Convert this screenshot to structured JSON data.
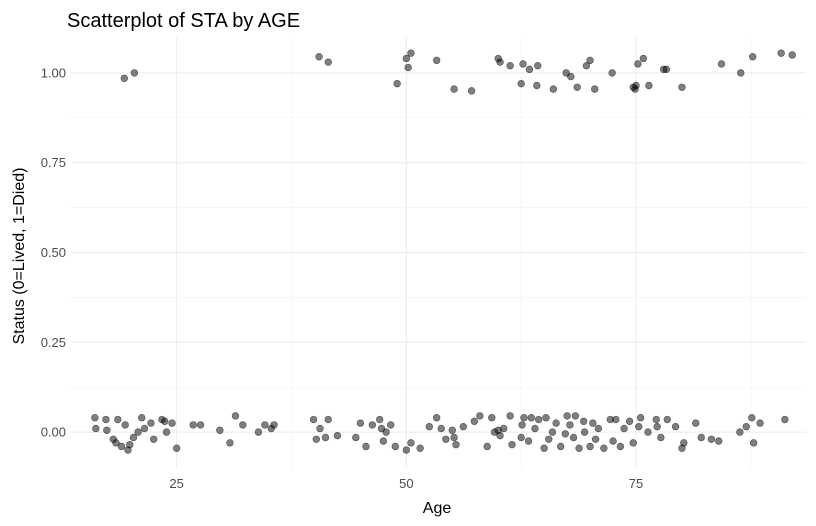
{
  "chart_data": {
    "type": "scatter",
    "title": "Scatterplot of STA by AGE",
    "xlabel": "Age",
    "ylabel": "Status (0=Lived, 1=Died)",
    "xlim": [
      13.5,
      93.5
    ],
    "ylim": [
      -0.1,
      1.1
    ],
    "x_ticks": [
      25,
      50,
      75
    ],
    "x_tick_labels": [
      "25",
      "50",
      "75"
    ],
    "y_ticks": [
      0,
      0.25,
      0.5,
      0.75,
      1
    ],
    "y_tick_labels": [
      "0.00",
      "0.25",
      "0.50",
      "0.75",
      "1.00"
    ],
    "grid": true,
    "point_color": "#000000",
    "point_alpha": 0.5,
    "jitter": true,
    "points": [
      {
        "x": 19.3,
        "y": 0.985
      },
      {
        "x": 20.4,
        "y": 1.0
      },
      {
        "x": 40.5,
        "y": 1.045
      },
      {
        "x": 41.5,
        "y": 1.03
      },
      {
        "x": 49.0,
        "y": 0.97
      },
      {
        "x": 50.0,
        "y": 1.04
      },
      {
        "x": 50.5,
        "y": 1.055
      },
      {
        "x": 50.2,
        "y": 1.015
      },
      {
        "x": 53.3,
        "y": 1.035
      },
      {
        "x": 55.2,
        "y": 0.955
      },
      {
        "x": 57.1,
        "y": 0.95
      },
      {
        "x": 60.0,
        "y": 1.04
      },
      {
        "x": 60.2,
        "y": 1.03
      },
      {
        "x": 61.3,
        "y": 1.02
      },
      {
        "x": 62.5,
        "y": 0.97
      },
      {
        "x": 62.7,
        "y": 1.025
      },
      {
        "x": 63.4,
        "y": 1.01
      },
      {
        "x": 64.3,
        "y": 1.02
      },
      {
        "x": 64.2,
        "y": 0.965
      },
      {
        "x": 66.0,
        "y": 0.955
      },
      {
        "x": 67.4,
        "y": 1.0
      },
      {
        "x": 67.9,
        "y": 0.99
      },
      {
        "x": 68.6,
        "y": 0.96
      },
      {
        "x": 69.6,
        "y": 1.02
      },
      {
        "x": 70.0,
        "y": 1.035
      },
      {
        "x": 70.5,
        "y": 0.955
      },
      {
        "x": 72.4,
        "y": 1.0
      },
      {
        "x": 74.7,
        "y": 0.96
      },
      {
        "x": 74.9,
        "y": 0.955
      },
      {
        "x": 75.0,
        "y": 0.965
      },
      {
        "x": 75.2,
        "y": 1.025
      },
      {
        "x": 75.8,
        "y": 1.04
      },
      {
        "x": 76.4,
        "y": 0.965
      },
      {
        "x": 78.0,
        "y": 1.01
      },
      {
        "x": 78.3,
        "y": 1.01
      },
      {
        "x": 80.0,
        "y": 0.96
      },
      {
        "x": 84.3,
        "y": 1.025
      },
      {
        "x": 86.4,
        "y": 1.0
      },
      {
        "x": 87.7,
        "y": 1.045
      },
      {
        "x": 90.8,
        "y": 1.055
      },
      {
        "x": 92.0,
        "y": 1.05
      },
      {
        "x": 16.1,
        "y": 0.04
      },
      {
        "x": 16.2,
        "y": 0.01
      },
      {
        "x": 17.3,
        "y": 0.035
      },
      {
        "x": 17.4,
        "y": 0.005
      },
      {
        "x": 18.1,
        "y": -0.02
      },
      {
        "x": 18.4,
        "y": -0.03
      },
      {
        "x": 18.6,
        "y": 0.035
      },
      {
        "x": 19.0,
        "y": -0.04
      },
      {
        "x": 19.4,
        "y": 0.02
      },
      {
        "x": 19.7,
        "y": -0.05
      },
      {
        "x": 19.9,
        "y": -0.035
      },
      {
        "x": 20.3,
        "y": -0.015
      },
      {
        "x": 20.8,
        "y": 0.0
      },
      {
        "x": 21.2,
        "y": 0.04
      },
      {
        "x": 21.5,
        "y": 0.01
      },
      {
        "x": 22.2,
        "y": 0.025
      },
      {
        "x": 22.5,
        "y": -0.02
      },
      {
        "x": 23.4,
        "y": 0.035
      },
      {
        "x": 23.7,
        "y": 0.03
      },
      {
        "x": 23.9,
        "y": 0.0
      },
      {
        "x": 24.5,
        "y": 0.025
      },
      {
        "x": 25.0,
        "y": -0.045
      },
      {
        "x": 26.8,
        "y": 0.02
      },
      {
        "x": 27.6,
        "y": 0.02
      },
      {
        "x": 29.7,
        "y": 0.005
      },
      {
        "x": 30.8,
        "y": -0.03
      },
      {
        "x": 31.4,
        "y": 0.045
      },
      {
        "x": 32.2,
        "y": 0.02
      },
      {
        "x": 33.9,
        "y": 0.0
      },
      {
        "x": 34.6,
        "y": 0.02
      },
      {
        "x": 35.3,
        "y": 0.01
      },
      {
        "x": 35.6,
        "y": 0.02
      },
      {
        "x": 39.9,
        "y": 0.035
      },
      {
        "x": 40.2,
        "y": -0.02
      },
      {
        "x": 40.6,
        "y": 0.01
      },
      {
        "x": 41.2,
        "y": -0.015
      },
      {
        "x": 41.5,
        "y": 0.035
      },
      {
        "x": 42.5,
        "y": -0.01
      },
      {
        "x": 44.5,
        "y": -0.015
      },
      {
        "x": 45.0,
        "y": 0.025
      },
      {
        "x": 45.6,
        "y": -0.04
      },
      {
        "x": 46.3,
        "y": 0.02
      },
      {
        "x": 47.1,
        "y": 0.035
      },
      {
        "x": 47.3,
        "y": 0.01
      },
      {
        "x": 47.8,
        "y": 0.0
      },
      {
        "x": 47.5,
        "y": -0.025
      },
      {
        "x": 48.8,
        "y": -0.04
      },
      {
        "x": 48.3,
        "y": 0.02
      },
      {
        "x": 50.0,
        "y": -0.05
      },
      {
        "x": 50.5,
        "y": -0.03
      },
      {
        "x": 51.5,
        "y": -0.045
      },
      {
        "x": 52.5,
        "y": 0.015
      },
      {
        "x": 53.3,
        "y": 0.04
      },
      {
        "x": 53.8,
        "y": 0.01
      },
      {
        "x": 54.3,
        "y": -0.02
      },
      {
        "x": 55.0,
        "y": 0.005
      },
      {
        "x": 55.2,
        "y": -0.015
      },
      {
        "x": 55.4,
        "y": -0.035
      },
      {
        "x": 56.2,
        "y": 0.015
      },
      {
        "x": 57.4,
        "y": 0.03
      },
      {
        "x": 58.0,
        "y": 0.045
      },
      {
        "x": 58.8,
        "y": -0.04
      },
      {
        "x": 59.3,
        "y": 0.04
      },
      {
        "x": 59.6,
        "y": 0.0
      },
      {
        "x": 60.0,
        "y": 0.005
      },
      {
        "x": 60.2,
        "y": -0.01
      },
      {
        "x": 60.6,
        "y": 0.01
      },
      {
        "x": 61.3,
        "y": 0.045
      },
      {
        "x": 61.5,
        "y": -0.035
      },
      {
        "x": 62.6,
        "y": 0.02
      },
      {
        "x": 62.5,
        "y": -0.015
      },
      {
        "x": 62.8,
        "y": 0.04
      },
      {
        "x": 63.3,
        "y": -0.025
      },
      {
        "x": 63.6,
        "y": 0.04
      },
      {
        "x": 64.0,
        "y": 0.01
      },
      {
        "x": 64.4,
        "y": 0.035
      },
      {
        "x": 65.0,
        "y": -0.045
      },
      {
        "x": 65.2,
        "y": 0.04
      },
      {
        "x": 65.5,
        "y": -0.02
      },
      {
        "x": 65.9,
        "y": 0.0
      },
      {
        "x": 66.3,
        "y": 0.025
      },
      {
        "x": 66.8,
        "y": -0.04
      },
      {
        "x": 67.3,
        "y": -0.005
      },
      {
        "x": 67.5,
        "y": 0.045
      },
      {
        "x": 67.8,
        "y": 0.02
      },
      {
        "x": 68.2,
        "y": -0.015
      },
      {
        "x": 68.4,
        "y": 0.045
      },
      {
        "x": 68.8,
        "y": -0.045
      },
      {
        "x": 69.3,
        "y": 0.03
      },
      {
        "x": 69.4,
        "y": 0.0
      },
      {
        "x": 70.0,
        "y": -0.04
      },
      {
        "x": 70.3,
        "y": 0.025
      },
      {
        "x": 70.6,
        "y": -0.02
      },
      {
        "x": 70.9,
        "y": 0.01
      },
      {
        "x": 71.5,
        "y": -0.045
      },
      {
        "x": 72.2,
        "y": 0.035
      },
      {
        "x": 72.5,
        "y": -0.025
      },
      {
        "x": 72.8,
        "y": 0.035
      },
      {
        "x": 73.3,
        "y": -0.04
      },
      {
        "x": 73.7,
        "y": 0.01
      },
      {
        "x": 74.3,
        "y": 0.03
      },
      {
        "x": 74.7,
        "y": -0.03
      },
      {
        "x": 75.3,
        "y": 0.015
      },
      {
        "x": 75.5,
        "y": 0.04
      },
      {
        "x": 76.3,
        "y": 0.0
      },
      {
        "x": 77.2,
        "y": 0.035
      },
      {
        "x": 77.3,
        "y": 0.015
      },
      {
        "x": 77.7,
        "y": -0.015
      },
      {
        "x": 78.4,
        "y": 0.035
      },
      {
        "x": 79.3,
        "y": 0.015
      },
      {
        "x": 80.0,
        "y": -0.045
      },
      {
        "x": 80.2,
        "y": -0.03
      },
      {
        "x": 81.5,
        "y": 0.025
      },
      {
        "x": 82.1,
        "y": -0.015
      },
      {
        "x": 83.2,
        "y": -0.02
      },
      {
        "x": 84.0,
        "y": -0.025
      },
      {
        "x": 86.3,
        "y": 0.0
      },
      {
        "x": 87.0,
        "y": 0.015
      },
      {
        "x": 87.6,
        "y": 0.04
      },
      {
        "x": 87.8,
        "y": -0.03
      },
      {
        "x": 88.5,
        "y": 0.025
      },
      {
        "x": 91.2,
        "y": 0.035
      }
    ]
  }
}
